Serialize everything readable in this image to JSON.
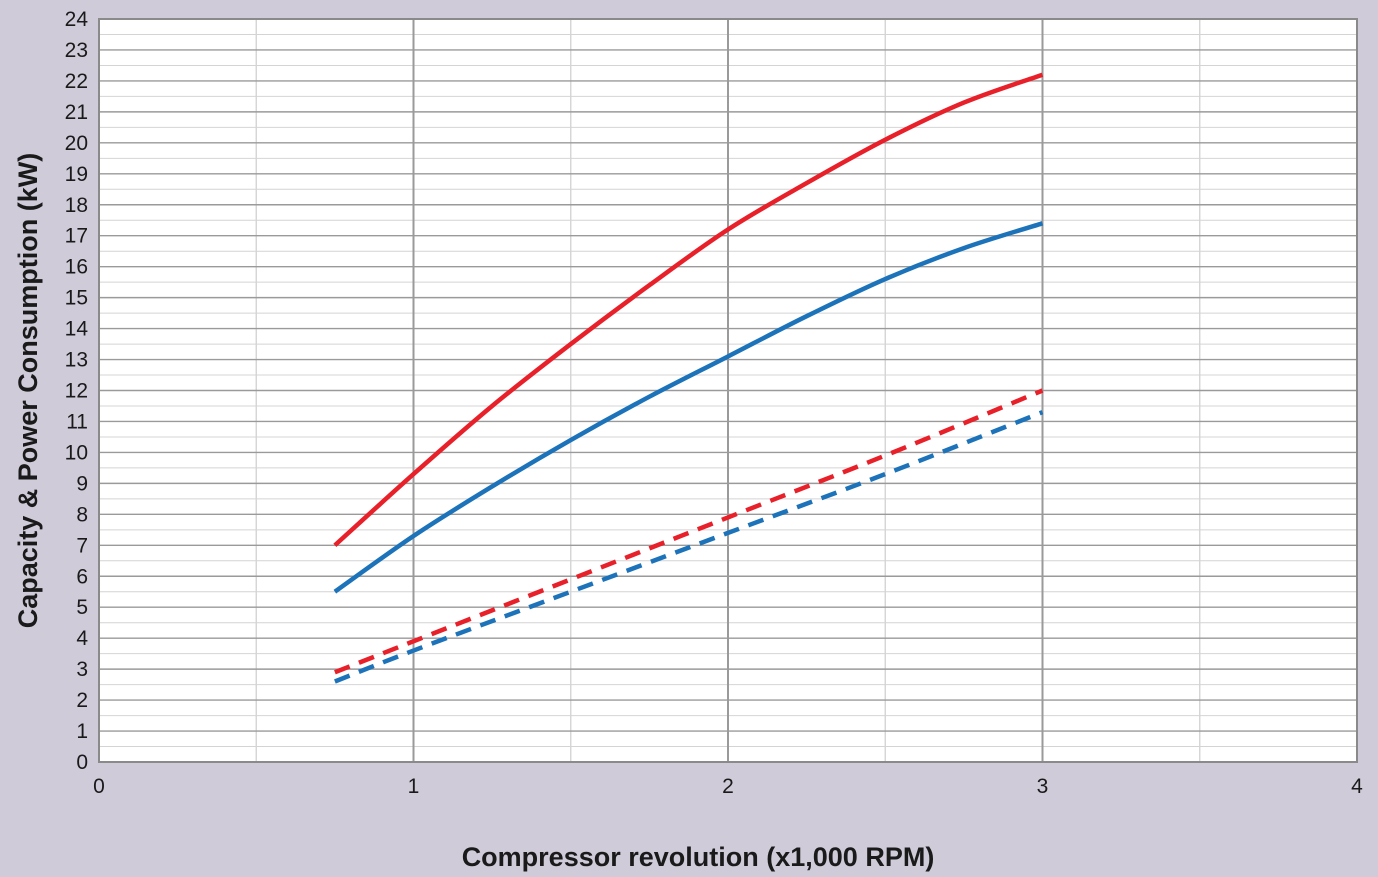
{
  "chart_data": {
    "type": "line",
    "title": "",
    "xlabel": "Compressor revolution (x1,000 RPM)",
    "ylabel": "Capacity & Power Consumption (kW)",
    "xlim": [
      0,
      4
    ],
    "ylim": [
      0,
      24
    ],
    "xticks": [
      "0",
      "1",
      "2",
      "3",
      "4"
    ],
    "yticks": [
      "0",
      "1",
      "2",
      "3",
      "4",
      "5",
      "6",
      "7",
      "8",
      "9",
      "10",
      "11",
      "12",
      "13",
      "14",
      "15",
      "16",
      "17",
      "18",
      "19",
      "20",
      "21",
      "22",
      "23",
      "24"
    ],
    "grid": true,
    "legend": "none",
    "series": [
      {
        "style": "solid",
        "color": "#e8202a",
        "x": [
          0.75,
          1.0,
          1.25,
          1.5,
          1.75,
          2.0,
          2.25,
          2.5,
          2.75,
          3.0
        ],
        "y": [
          7.0,
          9.3,
          11.5,
          13.5,
          15.4,
          17.2,
          18.7,
          20.1,
          21.3,
          22.2
        ]
      },
      {
        "style": "solid",
        "color": "#1c73b9",
        "x": [
          0.75,
          1.0,
          1.25,
          1.5,
          1.75,
          2.0,
          2.25,
          2.5,
          2.75,
          3.0
        ],
        "y": [
          5.5,
          7.3,
          8.9,
          10.4,
          11.8,
          13.1,
          14.4,
          15.6,
          16.6,
          17.4
        ]
      },
      {
        "style": "dashed",
        "color": "#e8202a",
        "x": [
          0.75,
          1.0,
          1.5,
          2.0,
          2.5,
          3.0
        ],
        "y": [
          2.9,
          3.9,
          5.9,
          7.9,
          9.9,
          12.0
        ]
      },
      {
        "style": "dashed",
        "color": "#1c73b9",
        "x": [
          0.75,
          1.0,
          1.5,
          2.0,
          2.5,
          3.0
        ],
        "y": [
          2.6,
          3.6,
          5.5,
          7.4,
          9.3,
          11.3
        ]
      }
    ]
  },
  "colors": {
    "background": "#cfcbd9",
    "plot_area": "#ffffff",
    "minor_grid": "#d4d4d4",
    "major_grid": "#9a9a9a"
  }
}
